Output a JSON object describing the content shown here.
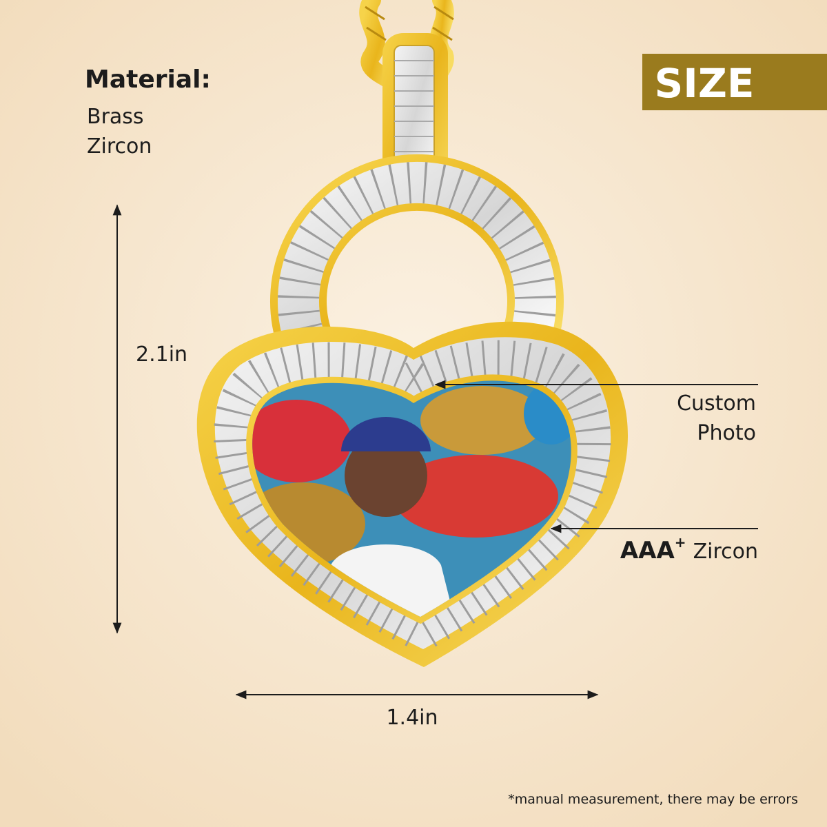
{
  "material": {
    "label": "Material:",
    "items": [
      "Brass",
      "Zircon"
    ]
  },
  "badge": "SIZE",
  "dimensions": {
    "height": "2.1in",
    "width": "1.4in"
  },
  "callouts": [
    {
      "lines": [
        "Custom",
        "Photo"
      ]
    },
    {
      "grade": "AAA",
      "grade_sup": "+",
      "label": "Zircon"
    }
  ],
  "footnote": "*manual measurement, there may be errors"
}
